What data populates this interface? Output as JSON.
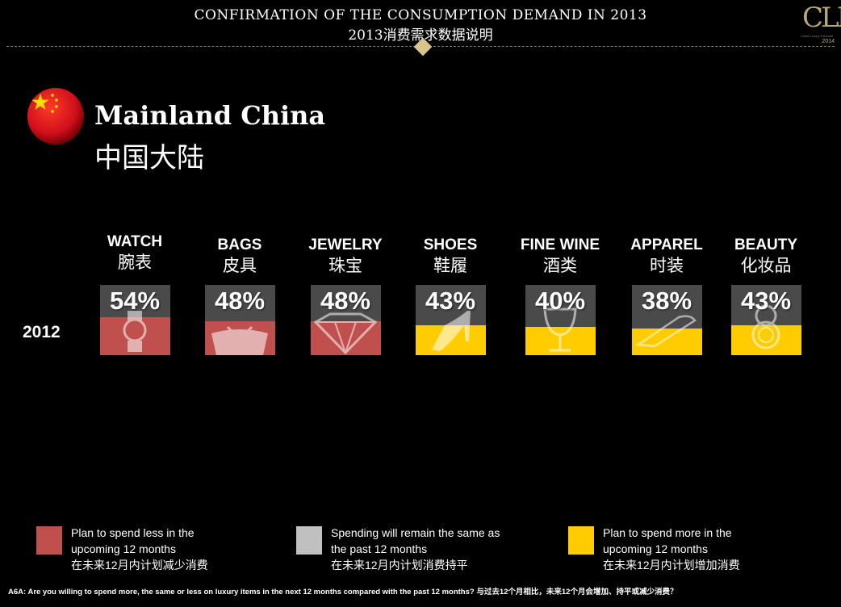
{
  "header": {
    "title": "CONFIRMATION OF THE CONSUMPTION DEMAND IN 2013",
    "subtitle": "2013消费需求数据说明",
    "logo_text": "CLF",
    "logo_small": "China Luxury Forecast",
    "logo_year": "2014"
  },
  "region": {
    "name_en": "Mainland China",
    "name_zh": "中国大陆"
  },
  "colors": {
    "less": "#c0504d",
    "same": "#c0c0c0",
    "more": "#ffcc00",
    "top": "#4a4a4a"
  },
  "chart_data": {
    "type": "bar",
    "row_label": "2012",
    "categories": [
      {
        "en": "WATCH",
        "zh": "腕表",
        "value_label": "54%",
        "value": 54,
        "color_key": "less",
        "icon": "watch-icon"
      },
      {
        "en": "BAGS",
        "zh": "皮具",
        "value_label": "48%",
        "value": 48,
        "color_key": "less",
        "icon": "handbag-icon"
      },
      {
        "en": "JEWELRY",
        "zh": "珠宝",
        "value_label": "48%",
        "value": 48,
        "color_key": "less",
        "icon": "diamond-icon"
      },
      {
        "en": "SHOES",
        "zh": "鞋履",
        "value_label": "43%",
        "value": 43,
        "color_key": "more",
        "icon": "high-heel-icon"
      },
      {
        "en": "FINE WINE",
        "zh": "酒类",
        "value_label": "40%",
        "value": 40,
        "color_key": "more",
        "icon": "wine-glass-icon"
      },
      {
        "en": "APPAREL",
        "zh": "时装",
        "value_label": "38%",
        "value": 38,
        "color_key": "more",
        "icon": "hanger-icon"
      },
      {
        "en": "BEAUTY",
        "zh": "化妆品",
        "value_label": "43%",
        "value": 43,
        "color_key": "more",
        "icon": "compact-mirror-icon"
      }
    ]
  },
  "legend": [
    {
      "key": "less",
      "line1": "Plan to spend less in the",
      "line2": "upcoming 12 months",
      "line3": "在未来12月内计划减少消费"
    },
    {
      "key": "same",
      "line1": "Spending will remain the same as",
      "line2": "the past 12 months",
      "line3": "在未来12月内计划消费持平"
    },
    {
      "key": "more",
      "line1": "Plan to spend more in the",
      "line2": "upcoming 12 months",
      "line3": "在未来12月内计划增加消费"
    }
  ],
  "footnote": "A6A: Are you willing to spend more, the same or less on luxury items in the next 12 months compared with the past 12 months? 与过去12个月相比，未来12个月会增加、持平或减少消费？"
}
